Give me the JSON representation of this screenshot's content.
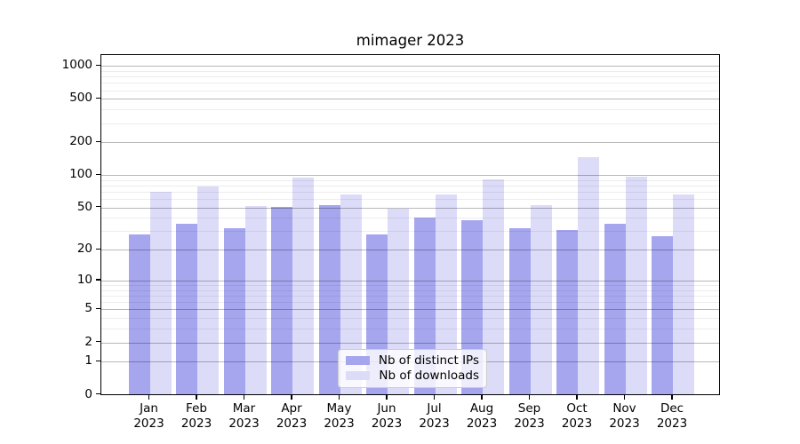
{
  "chart_data": {
    "type": "bar",
    "title": "mimager 2023",
    "categories": [
      "Jan 2023",
      "Feb 2023",
      "Mar 2023",
      "Apr 2023",
      "May 2023",
      "Jun 2023",
      "Jul 2023",
      "Aug 2023",
      "Sep 2023",
      "Oct 2023",
      "Nov 2023",
      "Dec 2023"
    ],
    "series": [
      {
        "name": "Nb of distinct IPs",
        "color": "#a6a6ef",
        "values": [
          28,
          35,
          32,
          51,
          53,
          28,
          40,
          38,
          32,
          31,
          35,
          27
        ]
      },
      {
        "name": "Nb of downloads",
        "color": "#dcdcf9",
        "values": [
          70,
          78,
          52,
          95,
          66,
          49,
          66,
          92,
          53,
          147,
          97,
          66
        ]
      }
    ],
    "yscale": "log1p",
    "ylim": [
      0,
      1290
    ],
    "y_major_ticks": [
      0,
      1,
      2,
      5,
      10,
      20,
      50,
      100,
      200,
      500,
      1000
    ],
    "y_tick_labels": [
      "0",
      "1",
      "2",
      "5",
      "10",
      "20",
      "50",
      "100",
      "200",
      "500",
      "1000"
    ],
    "y_minor_ticks": [
      3,
      4,
      6,
      7,
      8,
      9,
      30,
      40,
      60,
      70,
      80,
      90,
      300,
      400,
      600,
      700,
      800,
      900
    ],
    "xlabel": "",
    "ylabel": "",
    "grid": true,
    "legend_position": "lower center"
  },
  "colors": {
    "figure_background": "#ffffff",
    "spine": "#000000",
    "grid_major": "rgba(0,0,0,0.28)",
    "grid_minor": "rgba(0,0,0,0.07)",
    "legend_border": "#cccccc",
    "legend_background": "rgba(255,255,255,0.8)",
    "text": "#000000"
  }
}
